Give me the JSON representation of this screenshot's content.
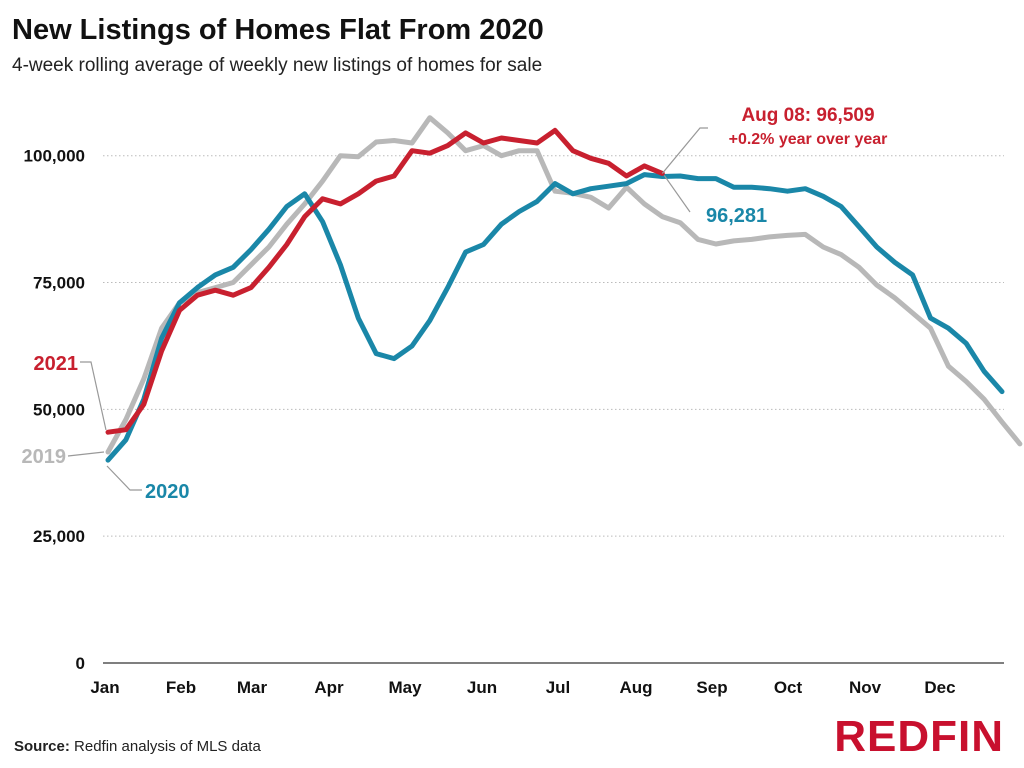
{
  "title": "New Listings of Homes Flat From 2020",
  "subtitle": "4-week rolling average of weekly new listings of homes for sale",
  "source_label": "Source:",
  "source_text": "Redfin analysis of MLS data",
  "logo_text": "REDFIN",
  "colors": {
    "2021": "#c8202f",
    "2020": "#1a87a8",
    "2019": "#b8b8b8",
    "grid": "#bbbbbb",
    "axis": "#333333"
  },
  "chart_data": {
    "type": "line",
    "x_unit": "week of year",
    "ylim": [
      0,
      110000
    ],
    "yticks": [
      0,
      25000,
      50000,
      75000,
      100000
    ],
    "ytick_labels": [
      "0",
      "25,000",
      "50,000",
      "75,000",
      "100,000"
    ],
    "month_labels": [
      "Jan",
      "Feb",
      "Mar",
      "Apr",
      "May",
      "Jun",
      "Jul",
      "Aug",
      "Sep",
      "Oct",
      "Nov",
      "Dec"
    ],
    "grid": true,
    "series": [
      {
        "name": "2019",
        "color": "#b8b8b8",
        "values": [
          41600,
          48000,
          56000,
          66000,
          71000,
          73000,
          74000,
          75000,
          78500,
          82000,
          86500,
          90500,
          95000,
          100000,
          99800,
          102700,
          103000,
          102500,
          107500,
          104500,
          101000,
          102000,
          100000,
          101000,
          101000,
          93000,
          92600,
          91800,
          89700,
          93800,
          90500,
          88000,
          86800,
          83500,
          82600,
          83200,
          83500,
          84000,
          84300,
          84500,
          82000,
          80500,
          78000,
          74500,
          72000,
          69000,
          66000,
          58500,
          55500,
          52000,
          47500,
          43200
        ],
        "label_text": "2019"
      },
      {
        "name": "2020",
        "color": "#1a87a8",
        "values": [
          40000,
          44000,
          52000,
          64000,
          71000,
          74000,
          76500,
          78000,
          81500,
          85500,
          90000,
          92500,
          87000,
          78500,
          68000,
          61000,
          60000,
          62500,
          67500,
          74000,
          81000,
          82500,
          86500,
          89000,
          91000,
          94500,
          92500,
          93500,
          94000,
          94500,
          96281,
          95900,
          96000,
          95500,
          95500,
          93800,
          93800,
          93500,
          93000,
          93500,
          92000,
          90000,
          86000,
          82000,
          79000,
          76500,
          68000,
          66000,
          63000,
          57500,
          53500
        ],
        "label_text": "2020"
      },
      {
        "name": "2021",
        "color": "#c8202f",
        "values": [
          45500,
          46000,
          51000,
          61500,
          69500,
          72500,
          73500,
          72500,
          74000,
          78000,
          82500,
          88000,
          91500,
          90500,
          92500,
          95000,
          96000,
          101000,
          100500,
          102000,
          104500,
          102500,
          103500,
          103000,
          102500,
          105000,
          101000,
          99500,
          98500,
          96000,
          98000,
          96509
        ],
        "label_text": "2021"
      }
    ],
    "annotations": {
      "highlight_line1": "Aug 08: 96,509",
      "highlight_line2": "+0.2% year over year",
      "highlight_2020_value": "96,281"
    }
  }
}
